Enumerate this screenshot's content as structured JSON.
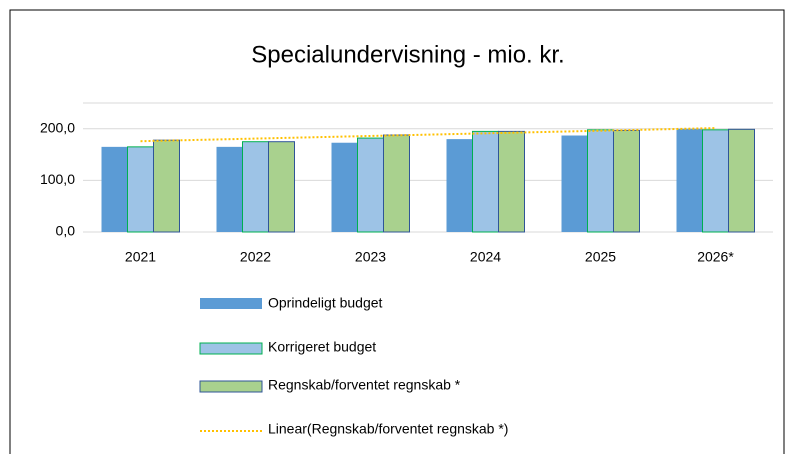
{
  "chart_data": {
    "type": "bar",
    "title": "Specialundervisning - mio. kr.",
    "categories": [
      "2021",
      "2022",
      "2023",
      "2024",
      "2025",
      "2026*"
    ],
    "series": [
      {
        "name": "Oprindeligt budget",
        "color": "#5b9bd5",
        "values": [
          165,
          165,
          173,
          180,
          187,
          200
        ]
      },
      {
        "name": "Korrigeret budget",
        "color": "#9dc3e6",
        "border": "#00b050",
        "values": [
          165,
          175,
          182,
          195,
          198,
          198
        ]
      },
      {
        "name": "Regnskab/forventet regnskab *",
        "color": "#a9d18e",
        "border": "#2f5597",
        "values": [
          178,
          175,
          188,
          195,
          197,
          199
        ]
      }
    ],
    "trendline": {
      "name": "Linear(Regnskab/forventet regnskab *)",
      "series": 2,
      "color": "#ffc000"
    },
    "ylim": [
      0,
      250
    ],
    "yticks": [
      {
        "value": 0,
        "label": "0,0"
      },
      {
        "value": 100,
        "label": "100,0"
      },
      {
        "value": 200,
        "label": "200,0"
      }
    ],
    "grid": true
  }
}
